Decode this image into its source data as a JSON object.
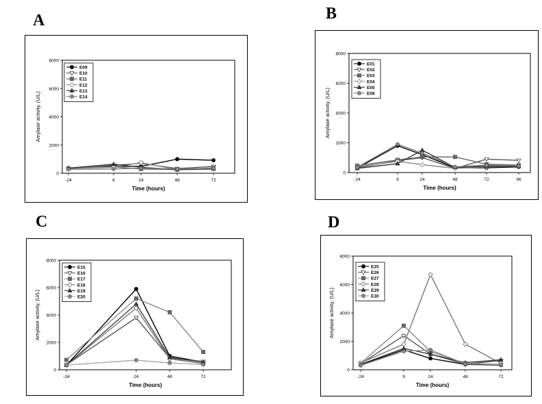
{
  "panels": [
    {
      "letter": "A"
    },
    {
      "letter": "B"
    },
    {
      "letter": "C"
    },
    {
      "letter": "D"
    }
  ],
  "chart_data": [
    {
      "panel": "A",
      "type": "line",
      "xlabel": "Time (hours)",
      "ylabel": "Amylase activity, (U/L)",
      "x_tick_labels": [
        "-24",
        "6",
        "24",
        "48",
        "72"
      ],
      "ylim": [
        0,
        8000
      ],
      "y_ticks": [
        0,
        2000,
        4000,
        6000,
        8000
      ],
      "legend_position": "top-left",
      "series": [
        {
          "name": "E09",
          "marker": "circle-filled",
          "color": "#000000",
          "values": [
            320,
            500,
            480,
            1000,
            920
          ]
        },
        {
          "name": "E10",
          "marker": "triangle-down-open",
          "color": "#555555",
          "values": [
            300,
            560,
            700,
            330,
            480
          ]
        },
        {
          "name": "E11",
          "marker": "square-filled",
          "color": "#666666",
          "values": [
            340,
            450,
            300,
            260,
            380
          ]
        },
        {
          "name": "E12",
          "marker": "diamond-open",
          "color": "#888888",
          "values": [
            330,
            430,
            750,
            260,
            290
          ]
        },
        {
          "name": "E13",
          "marker": "triangle-up-filled",
          "color": "#333333",
          "values": [
            360,
            640,
            420,
            250,
            310
          ]
        },
        {
          "name": "E14",
          "marker": "circle-gray",
          "color": "#777777",
          "values": [
            280,
            300,
            360,
            300,
            340
          ]
        }
      ]
    },
    {
      "panel": "B",
      "type": "line",
      "xlabel": "Time (hours)",
      "ylabel": "Amylase activity, (U/L)",
      "x_tick_labels": [
        "-24",
        "6",
        "24",
        "48",
        "72",
        "96"
      ],
      "ylim": [
        0,
        8000
      ],
      "y_ticks": [
        0,
        2000,
        4000,
        6000,
        8000
      ],
      "legend_position": "top-left",
      "series": [
        {
          "name": "E01",
          "marker": "circle-filled",
          "color": "#000000",
          "values": [
            300,
            1800,
            1200,
            320,
            320,
            380
          ]
        },
        {
          "name": "E02",
          "marker": "triangle-down-open",
          "color": "#555555",
          "values": [
            320,
            800,
            1000,
            280,
            900,
            820
          ]
        },
        {
          "name": "E03",
          "marker": "square-filled",
          "color": "#666666",
          "values": [
            460,
            850,
            1050,
            1050,
            560,
            500
          ]
        },
        {
          "name": "E04",
          "marker": "diamond-open",
          "color": "#888888",
          "values": [
            380,
            750,
            530,
            280,
            370,
            440
          ]
        },
        {
          "name": "E05",
          "marker": "triangle-up-filled",
          "color": "#333333",
          "values": [
            280,
            600,
            1500,
            350,
            420,
            420
          ]
        },
        {
          "name": "E06",
          "marker": "circle-gray",
          "color": "#777777",
          "values": [
            350,
            1900,
            1300,
            380,
            500,
            440
          ]
        }
      ]
    },
    {
      "panel": "C",
      "type": "line",
      "xlabel": "Time (hours)",
      "ylabel": "Amylase activity, (U/L)",
      "x_tick_labels": [
        "-24",
        "24",
        "48",
        "72"
      ],
      "ylim": [
        0,
        8000
      ],
      "y_ticks": [
        0,
        2000,
        4000,
        6000,
        8000
      ],
      "legend_position": "top-left",
      "series": [
        {
          "name": "E15",
          "marker": "circle-filled",
          "color": "#000000",
          "values": [
            330,
            5900,
            1000,
            560
          ]
        },
        {
          "name": "E16",
          "marker": "triangle-down-open",
          "color": "#555555",
          "values": [
            360,
            3800,
            850,
            600
          ]
        },
        {
          "name": "E17",
          "marker": "square-filled",
          "color": "#888888",
          "values": [
            720,
            5200,
            4200,
            1300
          ]
        },
        {
          "name": "E18",
          "marker": "diamond-open",
          "color": "#777777",
          "values": [
            340,
            4500,
            800,
            450
          ]
        },
        {
          "name": "E19",
          "marker": "triangle-up-filled",
          "color": "#444444",
          "values": [
            330,
            4800,
            900,
            550
          ]
        },
        {
          "name": "E20",
          "marker": "circle-gray",
          "color": "#aaaaaa",
          "values": [
            340,
            700,
            500,
            380
          ]
        }
      ]
    },
    {
      "panel": "D",
      "type": "line",
      "xlabel": "Time (hours)",
      "ylabel": "Amylase activity, (U/L)",
      "x_tick_labels": [
        "-24",
        "9",
        "24",
        "48",
        "72"
      ],
      "ylim": [
        0,
        8000
      ],
      "y_ticks": [
        0,
        2000,
        4000,
        6000,
        8000
      ],
      "legend_position": "top-left",
      "series": [
        {
          "name": "E25",
          "marker": "circle-filled",
          "color": "#000000",
          "values": [
            350,
            1400,
            800,
            380,
            330
          ]
        },
        {
          "name": "E26",
          "marker": "triangle-down-open",
          "color": "#555555",
          "values": [
            420,
            2400,
            1100,
            400,
            650
          ]
        },
        {
          "name": "E27",
          "marker": "square-filled",
          "color": "#888888",
          "values": [
            460,
            3100,
            1300,
            450,
            380
          ]
        },
        {
          "name": "E28",
          "marker": "diamond-open",
          "color": "#777777",
          "values": [
            480,
            1800,
            6700,
            1800,
            450
          ]
        },
        {
          "name": "E29",
          "marker": "triangle-up-filled",
          "color": "#333333",
          "values": [
            380,
            1500,
            1100,
            500,
            700
          ]
        },
        {
          "name": "E30",
          "marker": "circle-gray",
          "color": "#999999",
          "values": [
            300,
            1300,
            1400,
            420,
            360
          ]
        }
      ]
    }
  ]
}
